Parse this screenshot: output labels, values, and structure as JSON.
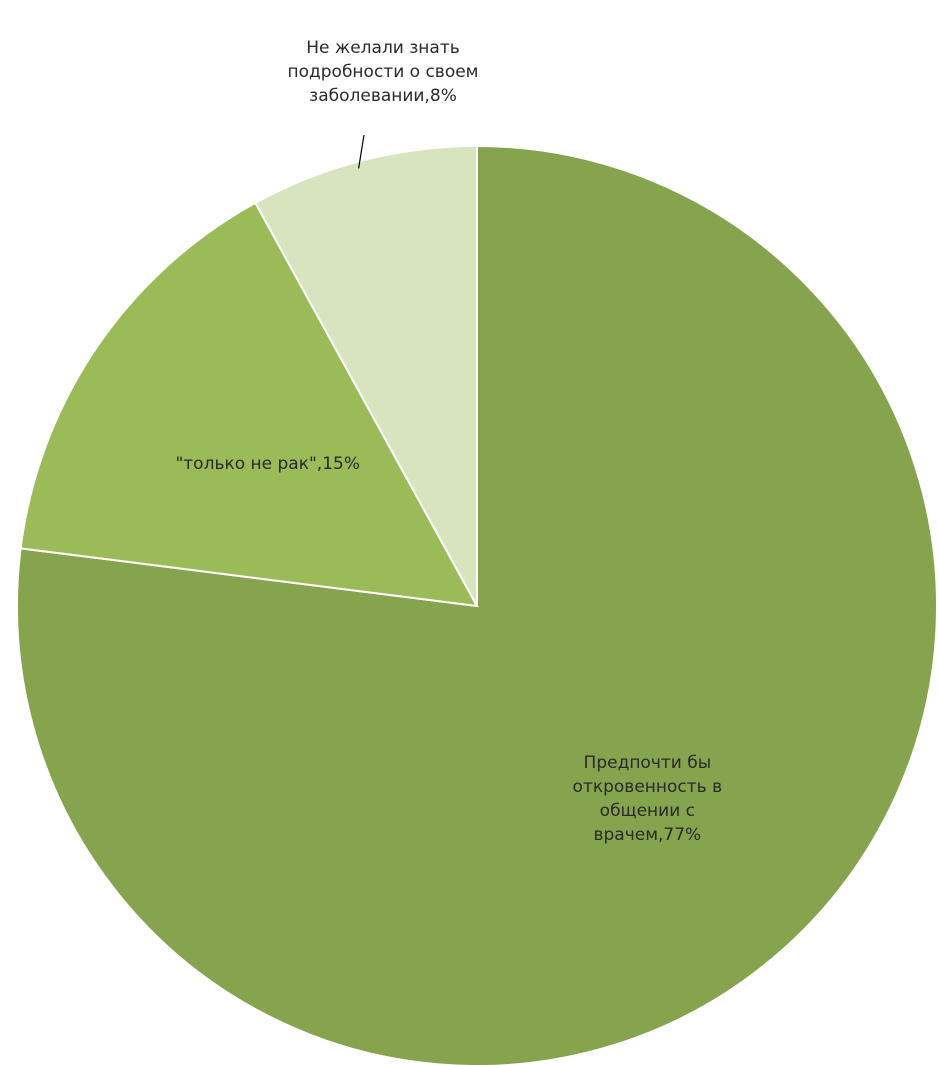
{
  "chart_data": {
    "type": "pie",
    "categories": [
      "Предпочти бы откровенность в общении с врачем",
      "\"только не рак\"",
      "Не желали знать подробности о своем заболевании"
    ],
    "values": [
      77,
      15,
      8
    ],
    "unit": "%",
    "data_labels": [
      "Предпочти бы откровенность в общении с врачем,77%",
      "\"только не рак\",15%",
      "Не желали знать подробности о своем заболевании,8%"
    ],
    "colors": [
      "#86a34d",
      "#9bbb59",
      "#d7e4bd"
    ],
    "start_angle": "12 o'clock",
    "direction": "clockwise",
    "legend": "none"
  }
}
